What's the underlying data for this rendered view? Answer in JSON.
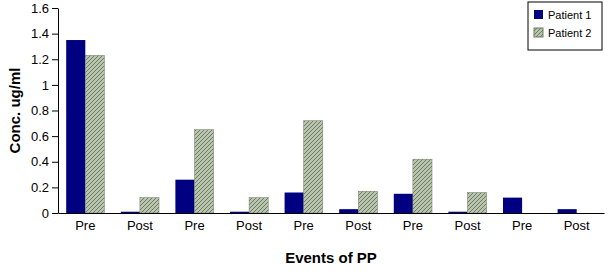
{
  "chart_data": {
    "type": "bar",
    "x_label": "Events of PP",
    "y_label": "Conc. ug/ml",
    "categories": [
      "Pre",
      "Post",
      "Pre",
      "Post",
      "Pre",
      "Post",
      "Pre",
      "Post",
      "Pre",
      "Post"
    ],
    "series": [
      {
        "name": "Patient 1",
        "color": "#000080",
        "values": [
          1.35,
          0.01,
          0.26,
          0.01,
          0.16,
          0.03,
          0.15,
          0.01,
          0.12,
          0.03
        ]
      },
      {
        "name": "Patient 2",
        "color": "#b9c4ae",
        "values": [
          1.23,
          0.12,
          0.65,
          0.12,
          0.72,
          0.17,
          0.42,
          0.16,
          null,
          null
        ]
      }
    ],
    "ylim": [
      0,
      1.6
    ],
    "yticks": [
      0,
      0.2,
      0.4,
      0.6,
      0.8,
      1,
      1.2,
      1.4,
      1.6
    ],
    "grid": false,
    "legend": "top-right"
  }
}
